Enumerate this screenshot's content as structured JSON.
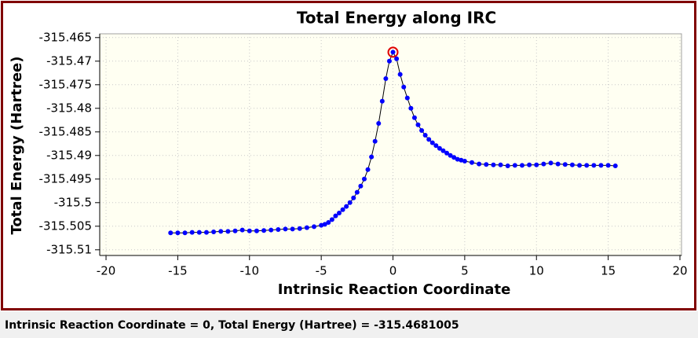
{
  "chart_data": {
    "type": "line",
    "title": "Total Energy along IRC",
    "xlabel": "Intrinsic Reaction Coordinate",
    "ylabel": "Total Energy (Hartree)",
    "x": [
      -15.5,
      -15,
      -14.5,
      -14,
      -13.5,
      -13,
      -12.5,
      -12,
      -11.5,
      -11,
      -10.5,
      -10,
      -9.5,
      -9,
      -8.5,
      -8,
      -7.5,
      -7,
      -6.5,
      -6,
      -5.5,
      -5,
      -4.75,
      -4.5,
      -4.25,
      -4,
      -3.75,
      -3.5,
      -3.25,
      -3,
      -2.75,
      -2.5,
      -2.25,
      -2,
      -1.75,
      -1.5,
      -1.25,
      -1,
      -0.75,
      -0.5,
      -0.25,
      0,
      0.25,
      0.5,
      0.75,
      1,
      1.25,
      1.5,
      1.75,
      2,
      2.25,
      2.5,
      2.75,
      3,
      3.25,
      3.5,
      3.75,
      4,
      4.25,
      4.5,
      4.75,
      5,
      5.5,
      6,
      6.5,
      7,
      7.5,
      8,
      8.5,
      9,
      9.5,
      10,
      10.5,
      11,
      11.5,
      12,
      12.5,
      13,
      13.5,
      14,
      14.5,
      15,
      15.5
    ],
    "series": [
      {
        "name": "Total Energy",
        "color": "#0000ff",
        "line_color": "#000000",
        "values": [
          -315.5064,
          -315.5064,
          -315.5064,
          -315.5063,
          -315.5063,
          -315.5063,
          -315.5062,
          -315.5061,
          -315.5061,
          -315.506,
          -315.5058,
          -315.506,
          -315.506,
          -315.5059,
          -315.5058,
          -315.5057,
          -315.5056,
          -315.5056,
          -315.5055,
          -315.5053,
          -315.5051,
          -315.5048,
          -315.5046,
          -315.5042,
          -315.5036,
          -315.5028,
          -315.5022,
          -315.5015,
          -315.5008,
          -315.5,
          -315.499,
          -315.4978,
          -315.4965,
          -315.495,
          -315.493,
          -315.4903,
          -315.487,
          -315.4832,
          -315.4785,
          -315.4737,
          -315.47,
          -315.4681005,
          -315.4695,
          -315.4728,
          -315.4755,
          -315.4778,
          -315.48,
          -315.482,
          -315.4835,
          -315.4847,
          -315.4857,
          -315.4866,
          -315.4873,
          -315.4879,
          -315.4885,
          -315.489,
          -315.4895,
          -315.49,
          -315.4904,
          -315.4908,
          -315.491,
          -315.4912,
          -315.4915,
          -315.4918,
          -315.4919,
          -315.492,
          -315.492,
          -315.4922,
          -315.4921,
          -315.4921,
          -315.492,
          -315.492,
          -315.4918,
          -315.4916,
          -315.4918,
          -315.4919,
          -315.492,
          -315.4921,
          -315.4921,
          -315.4921,
          -315.4921,
          -315.4921,
          -315.4922
        ]
      }
    ],
    "selected_x": 0,
    "highlight_color": "#e00000",
    "xlim": [
      -20.44,
      20.11
    ],
    "xticks": [
      -20,
      -15,
      -10,
      -5,
      0,
      5,
      10,
      15,
      20
    ],
    "ylim": [
      -315.5112,
      -315.4642
    ],
    "yticks": [
      -315.465,
      -315.47,
      -315.475,
      -315.48,
      -315.485,
      -315.49,
      -315.495,
      -315.5,
      -315.505,
      -315.51
    ],
    "grid": true
  },
  "status": "Intrinsic Reaction Coordinate = 0, Total Energy (Hartree) = -315.4681005"
}
